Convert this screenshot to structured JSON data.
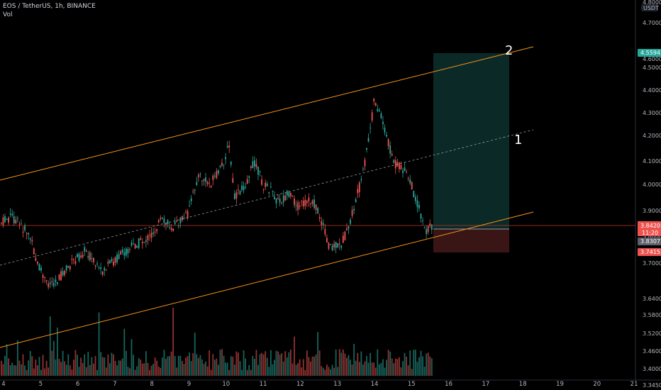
{
  "legend": {
    "symbol": "EOS / TetherUS, 1h, BINANCE",
    "volume": "Vol"
  },
  "price_axis": {
    "currency": "USDT",
    "top_label": "4.8000",
    "ticks": [
      "4.7000",
      "4.6000",
      "4.5000",
      "4.4000",
      "4.3000",
      "4.2000",
      "4.1000",
      "4.0000",
      "3.9000",
      "3.8000",
      "3.7000",
      "3.6400",
      "3.5800",
      "3.5200",
      "3.4600",
      "3.4000",
      "3.3450"
    ]
  },
  "time_axis": {
    "ticks": [
      "4",
      "5",
      "6",
      "7",
      "8",
      "9",
      "10",
      "11",
      "12",
      "13",
      "14",
      "15",
      "16",
      "17",
      "18",
      "19",
      "20",
      "21"
    ]
  },
  "price_labels": {
    "target": "4.5594",
    "current_price": "3.8420",
    "countdown": "11:20",
    "entry": "3.8307",
    "stop": "3.7415"
  },
  "annotations": {
    "label_1": "1",
    "label_2": "2"
  },
  "colors": {
    "up": "#26a69a",
    "down": "#ef5350",
    "channel": "#f7931a",
    "midline": "#9598a1",
    "profit_zone": "#0b2a27",
    "loss_zone": "#3a1515",
    "current_line": "#c0392b"
  }
}
